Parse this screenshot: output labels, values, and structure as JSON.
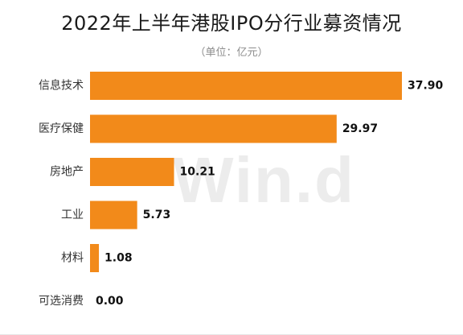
{
  "chart_data": {
    "type": "bar",
    "orientation": "horizontal",
    "title": "2022年上半年港股IPO分行业募资情况",
    "subtitle": "（单位：亿元）",
    "categories": [
      "信息技术",
      "医疗保健",
      "房地产",
      "工业",
      "材料",
      "可选消费"
    ],
    "values": [
      37.9,
      29.97,
      10.21,
      5.73,
      1.08,
      0.0
    ],
    "value_labels": [
      "37.90",
      "29.97",
      "10.21",
      "5.73",
      "1.08",
      "0.00"
    ],
    "xlim": [
      0,
      37.9
    ],
    "grid": false,
    "legend": "none",
    "bar_color": "#f28a1a"
  },
  "watermark": "Win.d"
}
